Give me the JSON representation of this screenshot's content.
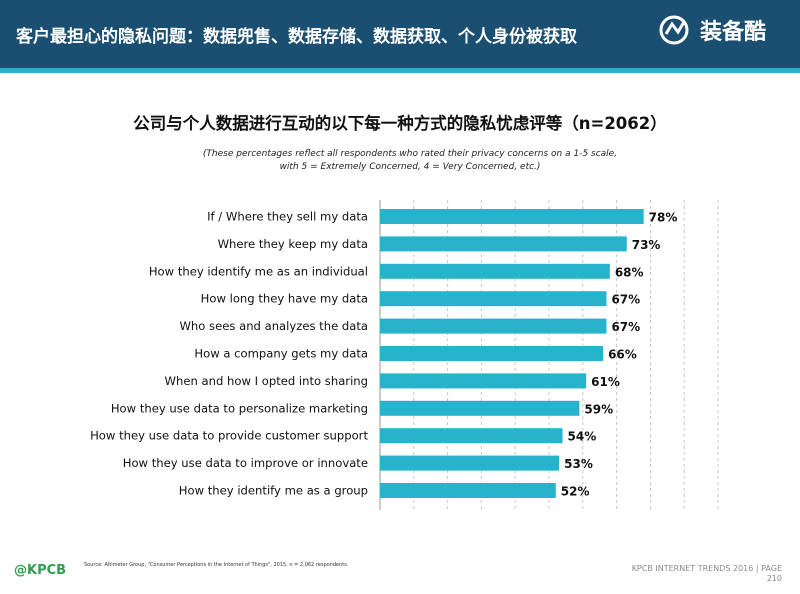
{
  "header": {
    "title": "客户最担心的隐私问题：数据兜售、数据存储、数据获取、个人身份被获取",
    "logo_text": "装备酷"
  },
  "chart_data": {
    "type": "bar",
    "orientation": "horizontal",
    "title": "公司与个人数据进行互动的以下每一种方式的隐私忧虑评等（n=2062）",
    "notes": [
      "(These percentages reflect all respondents who rated their privacy concerns on a 1-5 scale,",
      "with 5 = Extremely Concerned, 4 = Very Concerned, etc.)"
    ],
    "categories": [
      "If / Where they sell my data",
      "Where they keep my data",
      "How they identify me as an individual",
      "How long they have my data",
      "Who sees and analyzes the data",
      "How a company gets my data",
      "When and how I opted into sharing",
      "How they use data to personalize marketing",
      "How they use data to provide customer support",
      "How they use data to improve or innovate",
      "How they identify me as a group"
    ],
    "values": [
      78,
      73,
      68,
      67,
      67,
      66,
      61,
      59,
      54,
      53,
      52
    ],
    "value_labels": [
      "78%",
      "73%",
      "68%",
      "67%",
      "67%",
      "66%",
      "61%",
      "59%",
      "54%",
      "53%",
      "52%"
    ],
    "xlim": [
      0,
      100
    ],
    "grid": true,
    "bar_color": "#27b3cc"
  },
  "footer": {
    "brand": "@KPCB",
    "source": "Source: Altimeter Group, \"Consumer Perceptions in the Internet of Things\", 2015. n = 2,062 respondents.",
    "trends": "KPCB INTERNET TRENDS 2016  |  PAGE",
    "page": "210"
  },
  "colors": {
    "header_bg": "#1b4f72",
    "accent": "#2bb3cc",
    "bar": "#27b3cc",
    "brand_green": "#2e9e4f"
  }
}
